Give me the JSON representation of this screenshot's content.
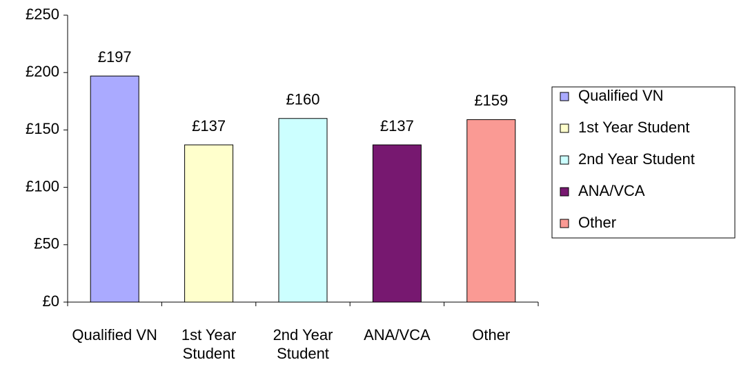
{
  "chart_data": {
    "type": "bar",
    "categories": [
      "Qualified VN",
      "1st Year Student",
      "2nd Year Student",
      "ANA/VCA",
      "Other"
    ],
    "values": [
      197,
      137,
      160,
      137,
      159
    ],
    "value_labels": [
      "£197",
      "£137",
      "£160",
      "£137",
      "£159"
    ],
    "colors": [
      "#aaaaff",
      "#ffffcc",
      "#ccffff",
      "#771870",
      "#fa9a94"
    ],
    "ylim": [
      0,
      250
    ],
    "yticks": [
      {
        "value": 0,
        "label": "£0"
      },
      {
        "value": 50,
        "label": "£50"
      },
      {
        "value": 100,
        "label": "£100"
      },
      {
        "value": 150,
        "label": "£150"
      },
      {
        "value": 200,
        "label": "£200"
      },
      {
        "value": 250,
        "label": "£250"
      }
    ],
    "legend": "right"
  }
}
